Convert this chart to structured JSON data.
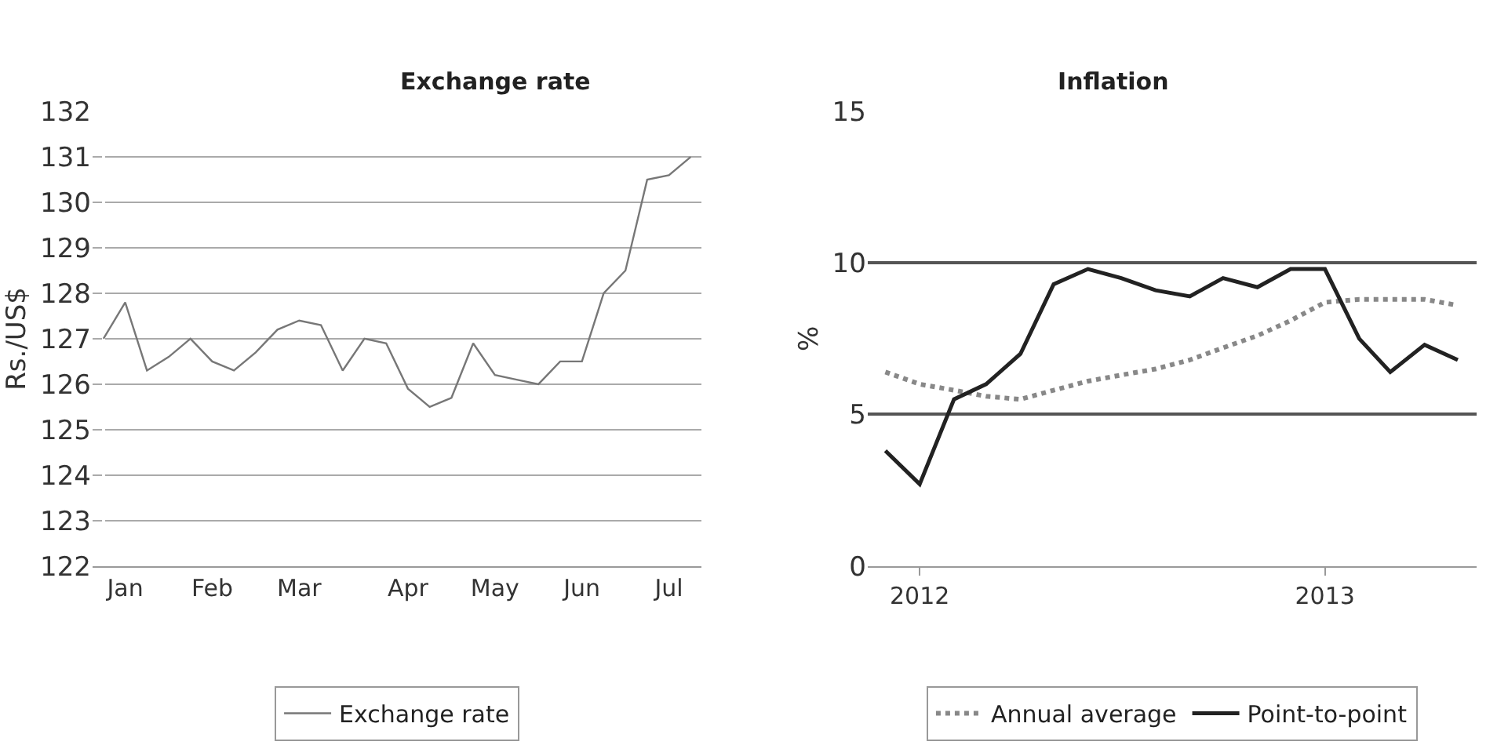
{
  "chart_data": [
    {
      "type": "line",
      "title": "Exchange rate",
      "ylabel": "Rs./US$",
      "categories": [
        null,
        "Jan",
        null,
        null,
        null,
        "Feb",
        null,
        null,
        null,
        "Mar",
        null,
        null,
        null,
        null,
        "Apr",
        null,
        null,
        null,
        "May",
        null,
        null,
        null,
        "Jun",
        null,
        null,
        null,
        "Jul",
        null
      ],
      "series": [
        {
          "name": "Exchange rate",
          "color": "#777777",
          "values": [
            127.0,
            127.8,
            126.3,
            126.6,
            127.0,
            126.5,
            126.3,
            126.7,
            127.2,
            127.4,
            127.3,
            126.3,
            127.0,
            126.9,
            125.9,
            125.5,
            125.7,
            126.9,
            126.2,
            126.1,
            126.0,
            126.5,
            126.5,
            128.0,
            128.5,
            130.5,
            130.6,
            131.0
          ]
        }
      ],
      "ylim": [
        122,
        132
      ],
      "yticks": [
        122,
        123,
        124,
        125,
        126,
        127,
        128,
        129,
        130,
        131,
        132
      ],
      "grid": "y",
      "legend": "bottom",
      "line_style": "solid",
      "marker": "none"
    },
    {
      "type": "line",
      "title": "Inflation",
      "ylabel": "%",
      "x": [
        "2011-12",
        "2012-01",
        "2012-02",
        "2012-03",
        "2012-04",
        "2012-05",
        "2012-06",
        "2012-07",
        "2012-08",
        "2012-09",
        "2012-10",
        "2012-11",
        "2012-12",
        "2013-01",
        "2013-02",
        "2013-03",
        "2013-04",
        "2013-05"
      ],
      "series": [
        {
          "name": "Annual average",
          "color": "#888888",
          "line_style": "dotted",
          "values": [
            6.4,
            6.0,
            5.8,
            5.6,
            5.5,
            5.8,
            6.1,
            6.3,
            6.5,
            6.8,
            7.2,
            7.6,
            8.1,
            8.7,
            8.8,
            8.8,
            8.8,
            8.6
          ]
        },
        {
          "name": "Point-to-point",
          "color": "#222222",
          "line_style": "solid",
          "values": [
            3.8,
            2.7,
            5.5,
            6.0,
            7.0,
            9.3,
            9.8,
            9.5,
            9.1,
            8.9,
            9.5,
            9.2,
            9.8,
            9.8,
            7.5,
            6.4,
            7.3,
            6.8
          ]
        }
      ],
      "xlim": [
        "2011-11-15",
        "2013-05-18"
      ],
      "xticks": [
        {
          "value": "2012-01",
          "label": "2012"
        },
        {
          "value": "2013-01",
          "label": "2013"
        }
      ],
      "ylim": [
        0,
        15
      ],
      "yticks": [
        0,
        5,
        10,
        15
      ],
      "grid": "y",
      "legend": "bottom",
      "marker": "none"
    }
  ]
}
